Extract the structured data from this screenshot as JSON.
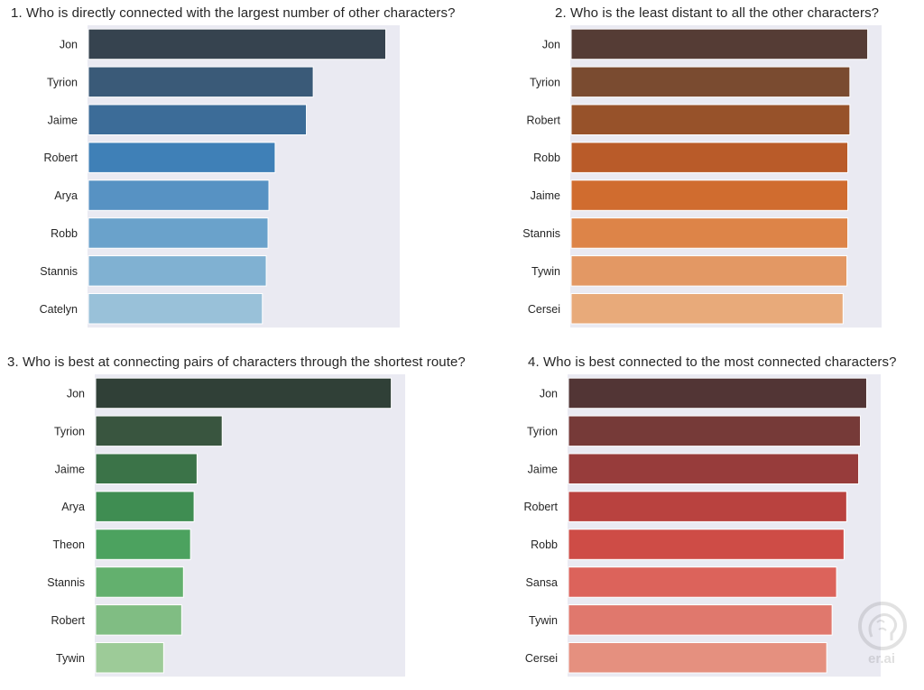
{
  "chart_data": [
    {
      "type": "bar",
      "orientation": "horizontal",
      "title": "1. Who is directly connected with the largest number of other characters?",
      "categories": [
        "Jon",
        "Tyrion",
        "Jaime",
        "Robert",
        "Arya",
        "Robb",
        "Stannis",
        "Catelyn"
      ],
      "values": [
        1.0,
        0.756,
        0.733,
        0.628,
        0.607,
        0.604,
        0.598,
        0.585
      ],
      "xlim": [
        0,
        1.05
      ],
      "grid": false,
      "colors": [
        "#36434f",
        "#3a5a78",
        "#3c6c98",
        "#3f80b7",
        "#5792c3",
        "#6aa2cb",
        "#80b1d2",
        "#99c1d9"
      ]
    },
    {
      "type": "bar",
      "orientation": "horizontal",
      "title": "2. Who is the least distant to all the other characters?",
      "categories": [
        "Jon",
        "Tyrion",
        "Robert",
        "Robb",
        "Jaime",
        "Stannis",
        "Tywin",
        "Cersei"
      ],
      "values": [
        1.0,
        0.94,
        0.94,
        0.933,
        0.933,
        0.933,
        0.93,
        0.917
      ],
      "xlim": [
        0,
        1.05
      ],
      "grid": false,
      "colors": [
        "#553c35",
        "#7a4b30",
        "#97522a",
        "#b95b29",
        "#d06c2f",
        "#dd8448",
        "#e39864",
        "#e8aa7a"
      ]
    },
    {
      "type": "bar",
      "orientation": "horizontal",
      "title": "3. Who is best at connecting pairs of characters through the shortest route?",
      "categories": [
        "Jon",
        "Tyrion",
        "Jaime",
        "Arya",
        "Theon",
        "Stannis",
        "Robert",
        "Tywin"
      ],
      "values": [
        1.0,
        0.428,
        0.343,
        0.333,
        0.321,
        0.297,
        0.291,
        0.23
      ],
      "xlim": [
        0,
        1.05
      ],
      "grid": false,
      "colors": [
        "#304037",
        "#39553f",
        "#3b7348",
        "#3f8d52",
        "#4ca25f",
        "#63b06e",
        "#80bd83",
        "#9dcb98"
      ]
    },
    {
      "type": "bar",
      "orientation": "horizontal",
      "title": "4. Who is best connected to the most connected characters?",
      "categories": [
        "Jon",
        "Tyrion",
        "Jaime",
        "Robert",
        "Robb",
        "Sansa",
        "Tywin",
        "Cersei"
      ],
      "values": [
        1.0,
        0.979,
        0.973,
        0.933,
        0.924,
        0.899,
        0.884,
        0.866
      ],
      "xlim": [
        0,
        1.05
      ],
      "grid": false,
      "colors": [
        "#523535",
        "#763a38",
        "#973c3b",
        "#b9423f",
        "#ce4c46",
        "#dc635b",
        "#e0786d",
        "#e5907f"
      ]
    }
  ],
  "watermark": {
    "text": "er.ai",
    "icon": "brain-logo-icon"
  }
}
